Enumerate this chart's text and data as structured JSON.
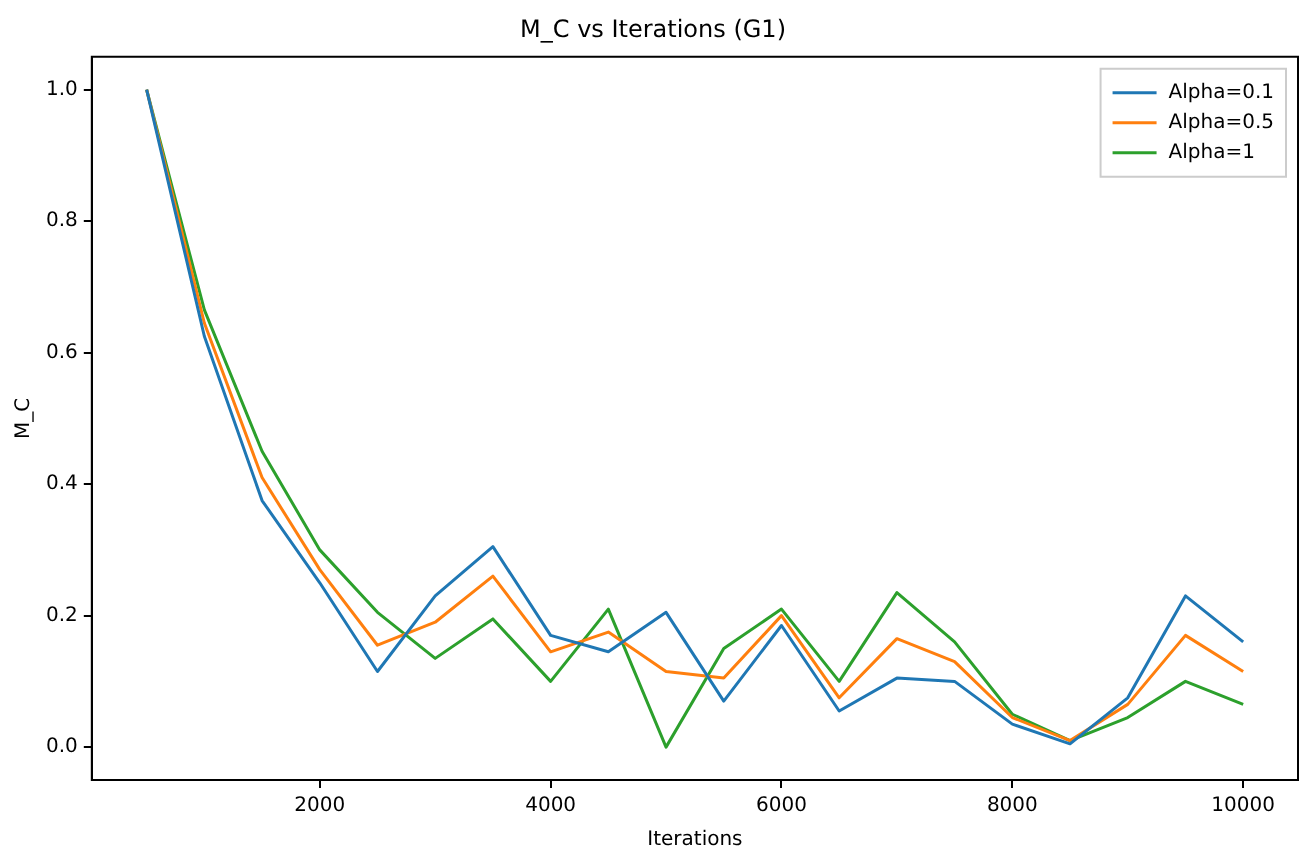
{
  "chart_data": {
    "type": "line",
    "title": "M_C vs Iterations (G1)",
    "xlabel": "Iterations",
    "ylabel": "M_C",
    "x": [
      500,
      1000,
      1500,
      2000,
      2500,
      3000,
      3500,
      4000,
      4500,
      5000,
      5500,
      6000,
      6500,
      7000,
      7500,
      8000,
      8500,
      9000,
      9500,
      10000
    ],
    "series": [
      {
        "name": "Alpha=0.1",
        "color": "#1f77b4",
        "values": [
          1.0,
          0.625,
          0.375,
          0.25,
          0.115,
          0.23,
          0.305,
          0.17,
          0.145,
          0.205,
          0.07,
          0.185,
          0.055,
          0.105,
          0.1,
          0.035,
          0.005,
          0.075,
          0.23,
          0.16
        ]
      },
      {
        "name": "Alpha=0.5",
        "color": "#ff7f0e",
        "values": [
          1.0,
          0.645,
          0.41,
          0.27,
          0.155,
          0.19,
          0.26,
          0.145,
          0.175,
          0.115,
          0.105,
          0.2,
          0.075,
          0.165,
          0.13,
          0.045,
          0.01,
          0.065,
          0.17,
          0.115
        ]
      },
      {
        "name": "Alpha=1",
        "color": "#2ca02c",
        "values": [
          1.0,
          0.665,
          0.45,
          0.3,
          0.205,
          0.135,
          0.195,
          0.1,
          0.21,
          0.0,
          0.15,
          0.21,
          0.1,
          0.235,
          0.16,
          0.05,
          0.01,
          0.045,
          0.1,
          0.065
        ]
      }
    ],
    "xlim": [
      25,
      10475
    ],
    "xticks": [
      2000,
      4000,
      6000,
      8000,
      10000
    ],
    "ylim": [
      -0.05,
      1.05
    ],
    "yticks": [
      {
        "value": 0,
        "label": "0.0"
      },
      {
        "value": 0.2,
        "label": "0.2"
      },
      {
        "value": 0.4,
        "label": "0.4"
      },
      {
        "value": 0.6,
        "label": "0.6"
      },
      {
        "value": 0.8,
        "label": "0.8"
      },
      {
        "value": 1,
        "label": "1.0"
      }
    ],
    "grid": false,
    "legend": "top right",
    "marker": "none",
    "line_style": "solid"
  }
}
